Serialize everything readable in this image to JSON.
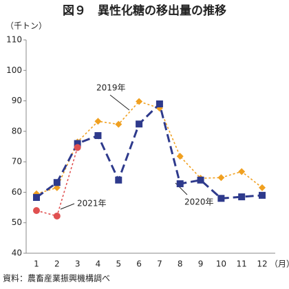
{
  "chart_data": {
    "type": "line",
    "title": "図９　異性化糖の移出量の推移",
    "y_label": "（千トン）",
    "x_label": "（月）",
    "source": "資料：農畜産業振興機構調べ",
    "categories": [
      "1",
      "2",
      "3",
      "4",
      "5",
      "6",
      "7",
      "8",
      "9",
      "10",
      "11",
      "12"
    ],
    "ylim": [
      40,
      110
    ],
    "yticks": [
      40,
      50,
      60,
      70,
      80,
      90,
      100,
      110
    ],
    "grid": false,
    "series": [
      {
        "name": "2019年",
        "color": "#f0a020",
        "marker": "diamond",
        "dash": "3,3",
        "width": 1.6,
        "values": [
          59.5,
          61.5,
          76.5,
          83.3,
          82.3,
          89.8,
          87.6,
          71.8,
          64.6,
          64.8,
          66.8,
          61.5
        ]
      },
      {
        "name": "2020年",
        "color": "#2e3a8c",
        "marker": "square",
        "dash": "12,6",
        "width": 3,
        "values": [
          58.3,
          63.2,
          76.0,
          78.6,
          64.0,
          82.4,
          89.0,
          62.8,
          64.0,
          58.0,
          58.5,
          59.0
        ]
      },
      {
        "name": "2021年",
        "color": "#e05050",
        "marker": "circle",
        "dash": "3,3",
        "width": 1.6,
        "values": [
          54.0,
          52.2,
          74.7,
          null,
          null,
          null,
          null,
          null,
          null,
          null,
          null,
          null
        ]
      }
    ]
  }
}
